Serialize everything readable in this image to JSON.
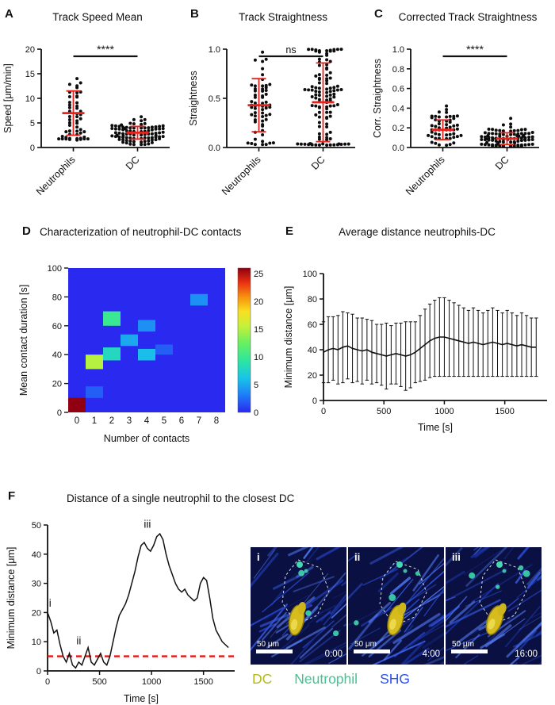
{
  "chart_data": [
    {
      "id": "A",
      "letter": "A",
      "type": "dotplot",
      "title": "Track Speed Mean",
      "ylabel": "Speed [μm/min]",
      "ylim": [
        0,
        20
      ],
      "yticks": [
        0,
        5,
        10,
        15,
        20
      ],
      "ytick_format": "int",
      "categories": [
        "Neutrophils",
        "DC"
      ],
      "significance": "****",
      "error_bar_color": "#e8231d",
      "groups": [
        {
          "name": "Neutrophils",
          "n": 52,
          "mean": 7.0,
          "sd": 4.5,
          "min": 1.5,
          "max": 15.5,
          "seed": 11
        },
        {
          "name": "DC",
          "n": 88,
          "mean": 3.0,
          "sd": 1.3,
          "min": 0.5,
          "max": 6.5,
          "seed": 22
        }
      ]
    },
    {
      "id": "B",
      "letter": "B",
      "type": "dotplot",
      "title": "Track Straightness",
      "ylabel": "Straightness",
      "ylim": [
        0,
        1
      ],
      "yticks": [
        0,
        0.5,
        1.0
      ],
      "ytick_format": "1dp",
      "categories": [
        "Neutrophils",
        "DC"
      ],
      "significance": "ns",
      "error_bar_color": "#e8231d",
      "groups": [
        {
          "name": "Neutrophils",
          "n": 62,
          "mean": 0.43,
          "sd": 0.27,
          "min": 0.03,
          "max": 0.97,
          "seed": 33
        },
        {
          "name": "DC",
          "n": 112,
          "mean": 0.46,
          "sd": 0.4,
          "min": 0.02,
          "max": 1.0,
          "seed": 44
        }
      ]
    },
    {
      "id": "C",
      "letter": "C",
      "type": "dotplot",
      "title": "Corrected Track Straightness",
      "ylabel": "Corr. Straightness",
      "ylim": [
        0,
        1
      ],
      "yticks": [
        0,
        0.2,
        0.4,
        0.6,
        0.8,
        1.0
      ],
      "ytick_format": "1dp",
      "categories": [
        "Neutrophils",
        "DC"
      ],
      "significance": "****",
      "error_bar_color": "#e8231d",
      "groups": [
        {
          "name": "Neutrophils",
          "n": 55,
          "mean": 0.18,
          "sd": 0.1,
          "min": 0.01,
          "max": 0.5,
          "seed": 55
        },
        {
          "name": "DC",
          "n": 95,
          "mean": 0.09,
          "sd": 0.06,
          "min": 0.01,
          "max": 0.32,
          "seed": 66
        }
      ]
    },
    {
      "id": "D",
      "letter": "D",
      "type": "heatmap",
      "title": "Characterization of  neutrophil-DC contacts",
      "xlabel": "Number of contacts",
      "ylabel": "Mean contact duration [s]",
      "xlim": [
        -0.5,
        8.5
      ],
      "ylim": [
        0,
        100
      ],
      "xticks": [
        0,
        1,
        2,
        3,
        4,
        5,
        6,
        7,
        8
      ],
      "yticks": [
        0,
        20,
        40,
        60,
        80,
        100
      ],
      "colorbar": {
        "min": 0,
        "max": 26,
        "ticks": [
          0,
          5,
          10,
          15,
          20,
          25
        ]
      },
      "background_value": 0,
      "cells": [
        {
          "x": 0,
          "y0": 0,
          "y1": 10,
          "value": 26
        },
        {
          "x": 1,
          "y0": 10,
          "y1": 18,
          "value": 2
        },
        {
          "x": 1,
          "y0": 30,
          "y1": 40,
          "value": 15
        },
        {
          "x": 2,
          "y0": 36,
          "y1": 45,
          "value": 8
        },
        {
          "x": 2,
          "y0": 60,
          "y1": 70,
          "value": 10
        },
        {
          "x": 3,
          "y0": 46,
          "y1": 54,
          "value": 5
        },
        {
          "x": 4,
          "y0": 36,
          "y1": 44,
          "value": 6
        },
        {
          "x": 4,
          "y0": 56,
          "y1": 64,
          "value": 4
        },
        {
          "x": 5,
          "y0": 40,
          "y1": 47,
          "value": 2
        },
        {
          "x": 7,
          "y0": 74,
          "y1": 82,
          "value": 4
        }
      ]
    },
    {
      "id": "E",
      "letter": "E",
      "type": "errorline",
      "title": "Average distance neutrophils-DC",
      "xlabel": "Time [s]",
      "ylabel": "Minimum distance [μm]",
      "xlim": [
        0,
        1850
      ],
      "ylim": [
        0,
        100
      ],
      "xticks": [
        0,
        500,
        1000,
        1500
      ],
      "yticks": [
        0,
        20,
        40,
        60,
        80,
        100
      ],
      "x": [
        0,
        40,
        80,
        120,
        160,
        200,
        240,
        280,
        320,
        360,
        400,
        440,
        480,
        520,
        560,
        600,
        640,
        680,
        720,
        760,
        800,
        840,
        880,
        920,
        960,
        1000,
        1040,
        1080,
        1120,
        1160,
        1200,
        1240,
        1280,
        1320,
        1360,
        1400,
        1440,
        1480,
        1520,
        1560,
        1600,
        1640,
        1680,
        1720,
        1760
      ],
      "mean": [
        38,
        40,
        41,
        40,
        42,
        43,
        41,
        40,
        39,
        40,
        38,
        37,
        36,
        35,
        36,
        37,
        36,
        35,
        36,
        38,
        41,
        44,
        47,
        49,
        50,
        50,
        49,
        48,
        47,
        46,
        45,
        46,
        45,
        44,
        45,
        46,
        45,
        44,
        45,
        44,
        43,
        44,
        43,
        42,
        42
      ],
      "sd": [
        24,
        26,
        25,
        27,
        28,
        26,
        27,
        25,
        26,
        24,
        25,
        23,
        24,
        26,
        23,
        24,
        25,
        27,
        26,
        24,
        26,
        28,
        29,
        30,
        31,
        31,
        30,
        29,
        28,
        27,
        26,
        27,
        26,
        25,
        26,
        27,
        26,
        25,
        26,
        25,
        24,
        25,
        24,
        23,
        23
      ]
    },
    {
      "id": "F",
      "letter": "F",
      "type": "line",
      "title": "Distance of a single neutrophil to the closest DC",
      "xlabel": "Time [s]",
      "ylabel": "Minimum distance [μm]",
      "xlim": [
        0,
        1800
      ],
      "ylim": [
        0,
        50
      ],
      "xticks": [
        0,
        500,
        1000,
        1500
      ],
      "yticks": [
        0,
        10,
        20,
        30,
        40,
        50
      ],
      "threshold": {
        "y": 5,
        "color": "#e81414",
        "style": "dashed"
      },
      "x": [
        0,
        30,
        60,
        90,
        120,
        150,
        180,
        210,
        240,
        270,
        300,
        330,
        360,
        390,
        420,
        450,
        480,
        510,
        540,
        570,
        600,
        630,
        660,
        690,
        720,
        750,
        780,
        810,
        840,
        870,
        900,
        930,
        960,
        990,
        1020,
        1050,
        1080,
        1110,
        1140,
        1170,
        1200,
        1230,
        1260,
        1290,
        1320,
        1350,
        1380,
        1410,
        1440,
        1470,
        1500,
        1530,
        1560,
        1590,
        1620,
        1650,
        1680,
        1710,
        1740
      ],
      "y": [
        20,
        17,
        13,
        14,
        9,
        5,
        3,
        6,
        2,
        1,
        3,
        2,
        5,
        8,
        3,
        2,
        4,
        6,
        3,
        2,
        5,
        10,
        15,
        19,
        21,
        23,
        26,
        30,
        34,
        39,
        43,
        44,
        42,
        41,
        43,
        46,
        47,
        45,
        40,
        36,
        33,
        30,
        28,
        27,
        28,
        26,
        25,
        24,
        25,
        30,
        32,
        31,
        25,
        18,
        14,
        12,
        10,
        9,
        8
      ],
      "annotations": [
        {
          "text": "i",
          "x": 25,
          "y": 21.5
        },
        {
          "text": "ii",
          "x": 300,
          "y": 8.5
        },
        {
          "text": "iii",
          "x": 960,
          "y": 48.5
        }
      ]
    }
  ],
  "figure": {
    "micrographs": {
      "scale_label": "50 μm",
      "items": [
        {
          "label": "i",
          "time": "0:00"
        },
        {
          "label": "ii",
          "time": "4:00"
        },
        {
          "label": "iii",
          "time": "16:00"
        }
      ]
    },
    "legend": [
      {
        "label": "DC",
        "color": "#b5b819"
      },
      {
        "label": "Neutrophil",
        "color": "#3fc792"
      },
      {
        "label": "SHG",
        "color": "#2b50f0"
      }
    ]
  }
}
